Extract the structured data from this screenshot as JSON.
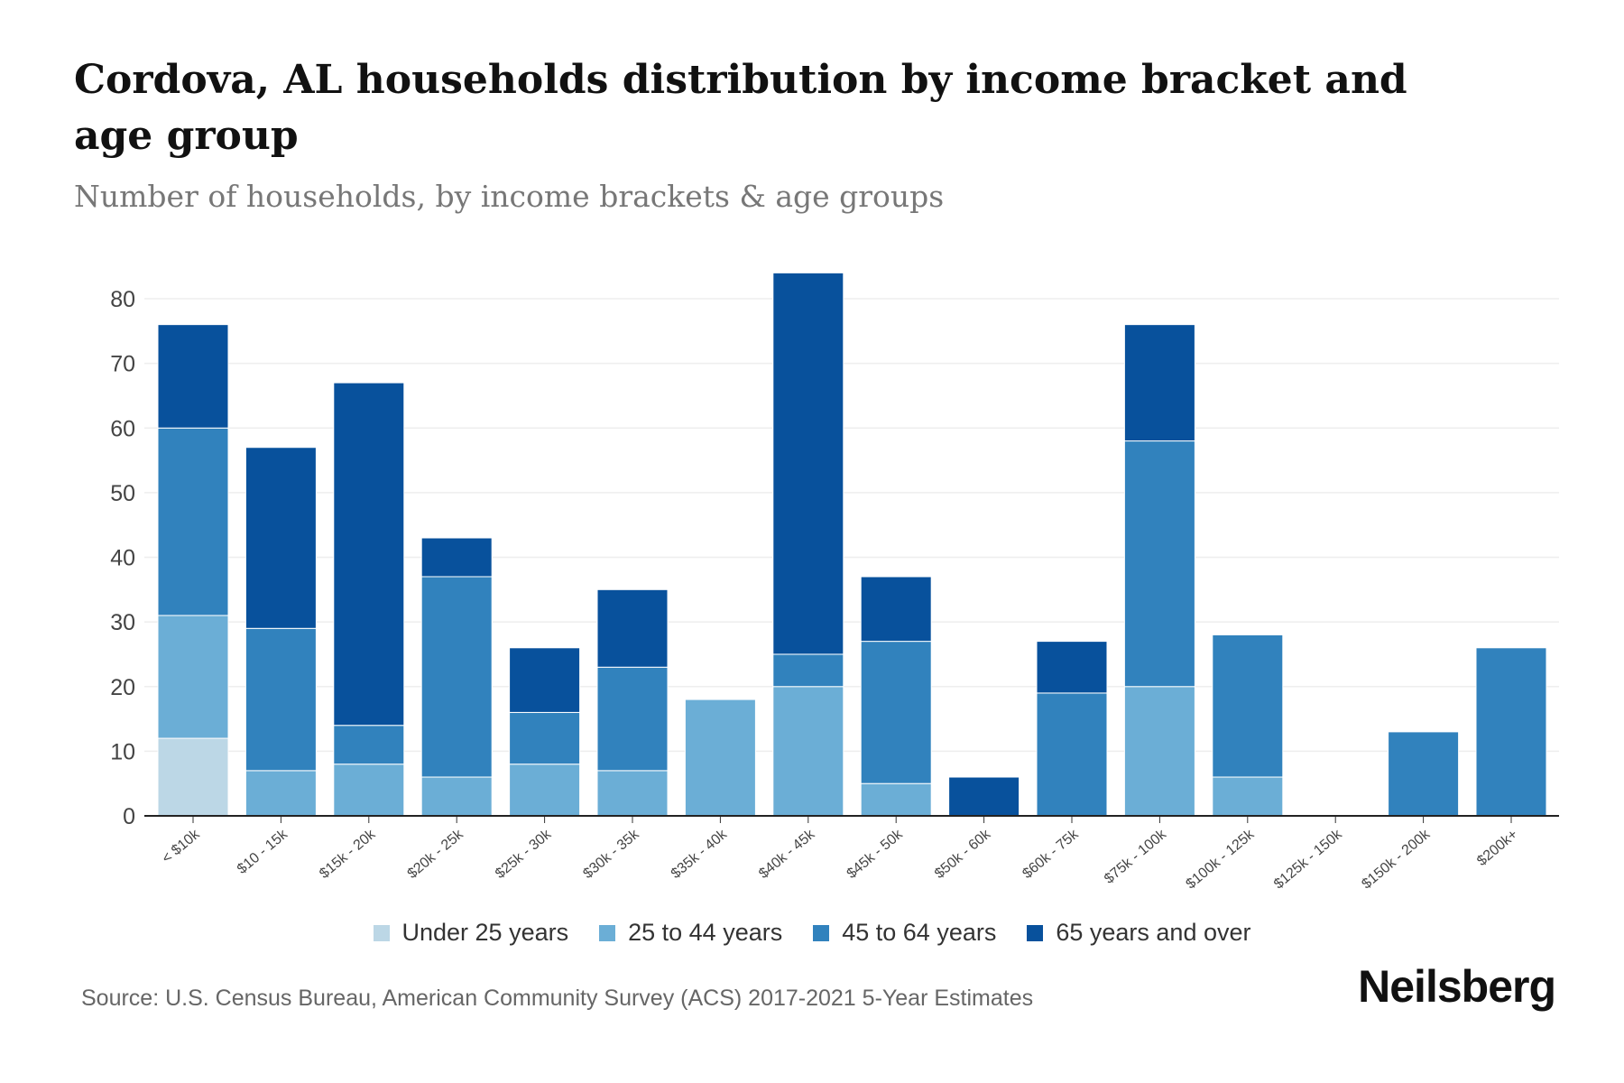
{
  "title": "Cordova, AL households distribution by income bracket and age group",
  "subtitle": "Number of households, by income brackets & age groups",
  "source": "Source: U.S. Census Bureau, American Community Survey (ACS) 2017-2021 5-Year Estimates",
  "logo": "Neilsberg",
  "chart_data": {
    "type": "bar",
    "stacked": true,
    "title": "Cordova, AL households distribution by income bracket and age group",
    "xlabel": "",
    "ylabel": "Number of households",
    "ylim": [
      0,
      85
    ],
    "yticks": [
      0,
      10,
      20,
      30,
      40,
      50,
      60,
      70,
      80
    ],
    "ytick_labels": [
      "0",
      "10",
      "20",
      "30",
      "40",
      "50",
      "60",
      "70",
      "80"
    ],
    "grid": true,
    "legend_position": "bottom",
    "categories": [
      "< $10k",
      "$10 - 15k",
      "$15k - 20k",
      "$20k - 25k",
      "$25k - 30k",
      "$30k - 35k",
      "$35k - 40k",
      "$40k - 45k",
      "$45k - 50k",
      "$50k - 60k",
      "$60k - 75k",
      "$75k - 100k",
      "$100k - 125k",
      "$125k - 150k",
      "$150k - 200k",
      "$200k+"
    ],
    "series": [
      {
        "name": "Under 25 years",
        "color": "#bcd7e6",
        "values": [
          12,
          0,
          0,
          0,
          0,
          0,
          0,
          0,
          0,
          0,
          0,
          0,
          0,
          0,
          0,
          0
        ]
      },
      {
        "name": "25 to 44 years",
        "color": "#6baed6",
        "values": [
          19,
          7,
          8,
          6,
          8,
          7,
          18,
          20,
          5,
          0,
          0,
          20,
          6,
          0,
          0,
          0
        ]
      },
      {
        "name": "45 to 64 years",
        "color": "#3182bd",
        "values": [
          29,
          22,
          6,
          31,
          8,
          16,
          0,
          5,
          22,
          0,
          19,
          38,
          22,
          0,
          13,
          26
        ]
      },
      {
        "name": "65 years and over",
        "color": "#08519c",
        "values": [
          16,
          28,
          53,
          6,
          10,
          12,
          0,
          59,
          10,
          6,
          8,
          18,
          0,
          0,
          0,
          0
        ]
      }
    ]
  }
}
